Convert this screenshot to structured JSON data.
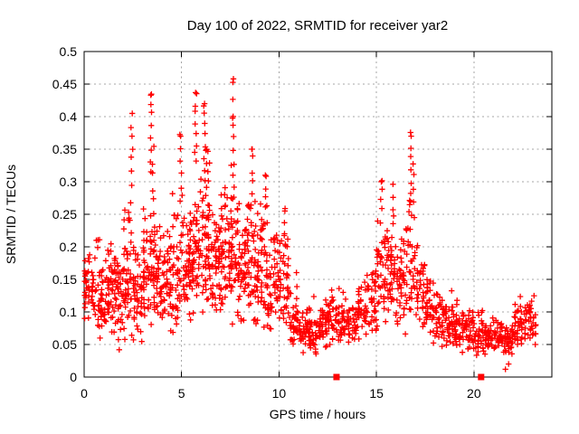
{
  "chart_data": {
    "type": "scatter",
    "title": "Day 100 of 2022, SRMTID for receiver yar2",
    "xlabel": "GPS time / hours",
    "ylabel": "SRMTID / TECUs",
    "xlim": [
      0,
      24
    ],
    "ylim": [
      0,
      0.5
    ],
    "xticks": [
      0,
      5,
      10,
      15,
      20
    ],
    "xtick_labels": [
      "0",
      "5",
      "10",
      "15",
      "20"
    ],
    "yticks": [
      0,
      0.05,
      0.1,
      0.15,
      0.2,
      0.25,
      0.3,
      0.35,
      0.4,
      0.45,
      0.5
    ],
    "ytick_labels": [
      "0",
      "0.05",
      "0.1",
      "0.15",
      "0.2",
      "0.25",
      "0.3",
      "0.35",
      "0.4",
      "0.45",
      "0.5"
    ],
    "grid": true,
    "legend": "none",
    "marker": "plus",
    "marker_color": "#ff0000",
    "grid_color": "#a6a6a6",
    "frame_color": "#000000",
    "background_color": "#ffffff",
    "seed": 1337,
    "density_bands": [
      [
        0.0,
        0.5,
        40,
        0.08,
        0.225
      ],
      [
        0.5,
        1.0,
        40,
        0.05,
        0.25
      ],
      [
        1.0,
        1.5,
        45,
        0.045,
        0.26
      ],
      [
        1.5,
        2.0,
        45,
        0.035,
        0.25
      ],
      [
        2.0,
        2.5,
        50,
        0.045,
        0.32
      ],
      [
        2.5,
        3.0,
        45,
        0.05,
        0.27
      ],
      [
        3.0,
        3.5,
        50,
        0.06,
        0.33
      ],
      [
        3.5,
        4.0,
        50,
        0.07,
        0.3
      ],
      [
        4.0,
        4.5,
        45,
        0.06,
        0.28
      ],
      [
        4.5,
        5.0,
        45,
        0.06,
        0.33
      ],
      [
        5.0,
        5.5,
        50,
        0.08,
        0.32
      ],
      [
        5.5,
        6.0,
        50,
        0.08,
        0.36
      ],
      [
        6.0,
        6.5,
        55,
        0.08,
        0.38
      ],
      [
        6.5,
        7.0,
        50,
        0.07,
        0.33
      ],
      [
        7.0,
        7.5,
        50,
        0.08,
        0.35
      ],
      [
        7.5,
        8.0,
        55,
        0.07,
        0.37
      ],
      [
        8.0,
        8.5,
        50,
        0.07,
        0.33
      ],
      [
        8.5,
        9.0,
        45,
        0.05,
        0.35
      ],
      [
        9.0,
        9.5,
        45,
        0.06,
        0.31
      ],
      [
        9.5,
        10.0,
        40,
        0.05,
        0.3
      ],
      [
        10.0,
        10.5,
        40,
        0.05,
        0.26
      ],
      [
        10.5,
        11.0,
        35,
        0.04,
        0.18
      ],
      [
        11.0,
        11.5,
        35,
        0.035,
        0.15
      ],
      [
        11.5,
        12.0,
        40,
        0.03,
        0.13
      ],
      [
        12.0,
        12.5,
        40,
        0.04,
        0.14
      ],
      [
        12.5,
        13.0,
        35,
        0.04,
        0.16
      ],
      [
        13.0,
        13.5,
        35,
        0.04,
        0.15
      ],
      [
        13.5,
        14.0,
        35,
        0.045,
        0.14
      ],
      [
        14.0,
        14.5,
        35,
        0.05,
        0.17
      ],
      [
        14.5,
        15.0,
        35,
        0.05,
        0.22
      ],
      [
        15.0,
        15.5,
        40,
        0.07,
        0.28
      ],
      [
        15.5,
        16.0,
        40,
        0.07,
        0.3
      ],
      [
        16.0,
        16.5,
        40,
        0.06,
        0.28
      ],
      [
        16.5,
        17.0,
        40,
        0.06,
        0.33
      ],
      [
        17.0,
        17.5,
        35,
        0.05,
        0.28
      ],
      [
        17.5,
        18.0,
        35,
        0.05,
        0.2
      ],
      [
        18.0,
        18.5,
        35,
        0.04,
        0.16
      ],
      [
        18.5,
        19.0,
        35,
        0.04,
        0.15
      ],
      [
        19.0,
        19.5,
        35,
        0.035,
        0.14
      ],
      [
        19.5,
        20.0,
        35,
        0.03,
        0.13
      ],
      [
        20.0,
        20.5,
        35,
        0.03,
        0.12
      ],
      [
        20.5,
        21.0,
        35,
        0.03,
        0.1
      ],
      [
        21.0,
        21.5,
        35,
        0.03,
        0.11
      ],
      [
        21.5,
        22.0,
        35,
        0.025,
        0.1
      ],
      [
        22.0,
        22.5,
        35,
        0.04,
        0.13
      ],
      [
        22.5,
        23.2,
        40,
        0.045,
        0.15
      ]
    ],
    "streaks": [
      [
        2.45,
        0.3,
        0.405,
        7
      ],
      [
        3.42,
        0.32,
        0.433,
        8
      ],
      [
        3.55,
        0.25,
        0.35,
        6
      ],
      [
        4.95,
        0.27,
        0.37,
        6
      ],
      [
        5.72,
        0.33,
        0.437,
        8
      ],
      [
        6.18,
        0.3,
        0.42,
        8
      ],
      [
        6.32,
        0.25,
        0.35,
        6
      ],
      [
        7.6,
        0.4,
        0.458,
        3
      ],
      [
        7.66,
        0.28,
        0.4,
        8
      ],
      [
        8.6,
        0.27,
        0.35,
        6
      ],
      [
        9.3,
        0.24,
        0.31,
        5
      ],
      [
        10.3,
        0.2,
        0.255,
        4
      ],
      [
        15.25,
        0.24,
        0.3,
        5
      ],
      [
        15.82,
        0.22,
        0.3,
        5
      ],
      [
        16.78,
        0.27,
        0.37,
        7
      ],
      [
        16.92,
        0.25,
        0.33,
        5
      ]
    ],
    "notable_points": [
      [
        7.66,
        0.458
      ],
      [
        5.72,
        0.437
      ],
      [
        3.42,
        0.433
      ],
      [
        6.18,
        0.42
      ],
      [
        2.47,
        0.405
      ],
      [
        16.78,
        0.37
      ],
      [
        4.95,
        0.37
      ],
      [
        8.6,
        0.35
      ],
      [
        9.3,
        0.31
      ],
      [
        15.25,
        0.3
      ],
      [
        10.3,
        0.255
      ],
      [
        21.62,
        0.012
      ],
      [
        21.78,
        0.02
      ],
      [
        1.8,
        0.042
      ],
      [
        23.15,
        0.05
      ],
      [
        0.03,
        0.09
      ],
      [
        0.05,
        0.155
      ]
    ],
    "zero_axis_squares": [
      12.95,
      20.37
    ]
  }
}
